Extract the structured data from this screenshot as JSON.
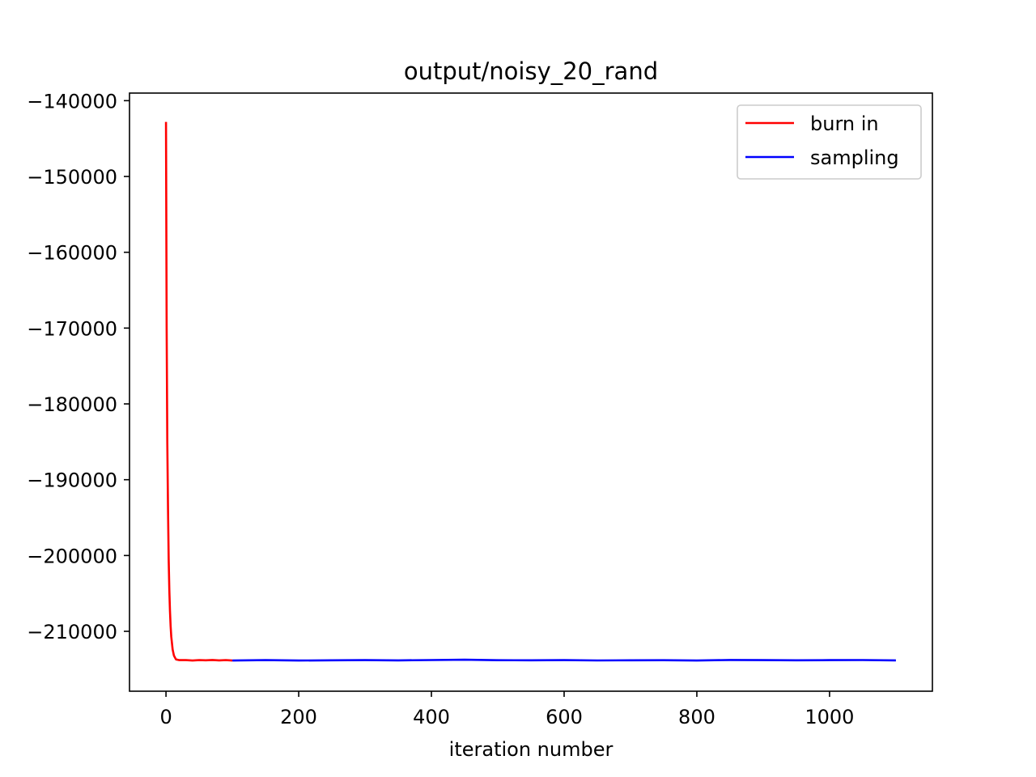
{
  "chart_data": {
    "type": "line",
    "title": "output/noisy_20_rand",
    "xlabel": "iteration number",
    "ylabel": "",
    "xlim": [
      -55,
      1155
    ],
    "ylim": [
      -217900,
      -139000
    ],
    "x_ticks": [
      0,
      200,
      400,
      600,
      800,
      1000
    ],
    "x_tick_labels": [
      "0",
      "200",
      "400",
      "600",
      "800",
      "1000"
    ],
    "y_ticks": [
      -140000,
      -150000,
      -160000,
      -170000,
      -180000,
      -190000,
      -200000,
      -210000
    ],
    "y_tick_labels": [
      "−140000",
      "−150000",
      "−160000",
      "−170000",
      "−180000",
      "−190000",
      "−200000",
      "−210000"
    ],
    "grid": false,
    "legend_position": "top-right",
    "series": [
      {
        "name": "burn in",
        "color": "#ff0000",
        "x": [
          0,
          1,
          2,
          3,
          4,
          5,
          6,
          7,
          8,
          10,
          12,
          15,
          20,
          25,
          30,
          40,
          50,
          60,
          70,
          80,
          90,
          100
        ],
        "y": [
          -142800,
          -170000,
          -185000,
          -194000,
          -200500,
          -204500,
          -207300,
          -209300,
          -210700,
          -212400,
          -213200,
          -213700,
          -213800,
          -213800,
          -213800,
          -213850,
          -213800,
          -213820,
          -213780,
          -213830,
          -213800,
          -213850
        ]
      },
      {
        "name": "sampling",
        "color": "#0000ff",
        "x": [
          100,
          150,
          200,
          250,
          300,
          350,
          400,
          450,
          500,
          550,
          600,
          650,
          700,
          750,
          800,
          850,
          900,
          950,
          1000,
          1050,
          1100
        ],
        "y": [
          -213850,
          -213800,
          -213850,
          -213820,
          -213800,
          -213830,
          -213790,
          -213750,
          -213810,
          -213820,
          -213800,
          -213840,
          -213820,
          -213810,
          -213850,
          -213780,
          -213800,
          -213820,
          -213800,
          -213790,
          -213830
        ]
      }
    ]
  }
}
